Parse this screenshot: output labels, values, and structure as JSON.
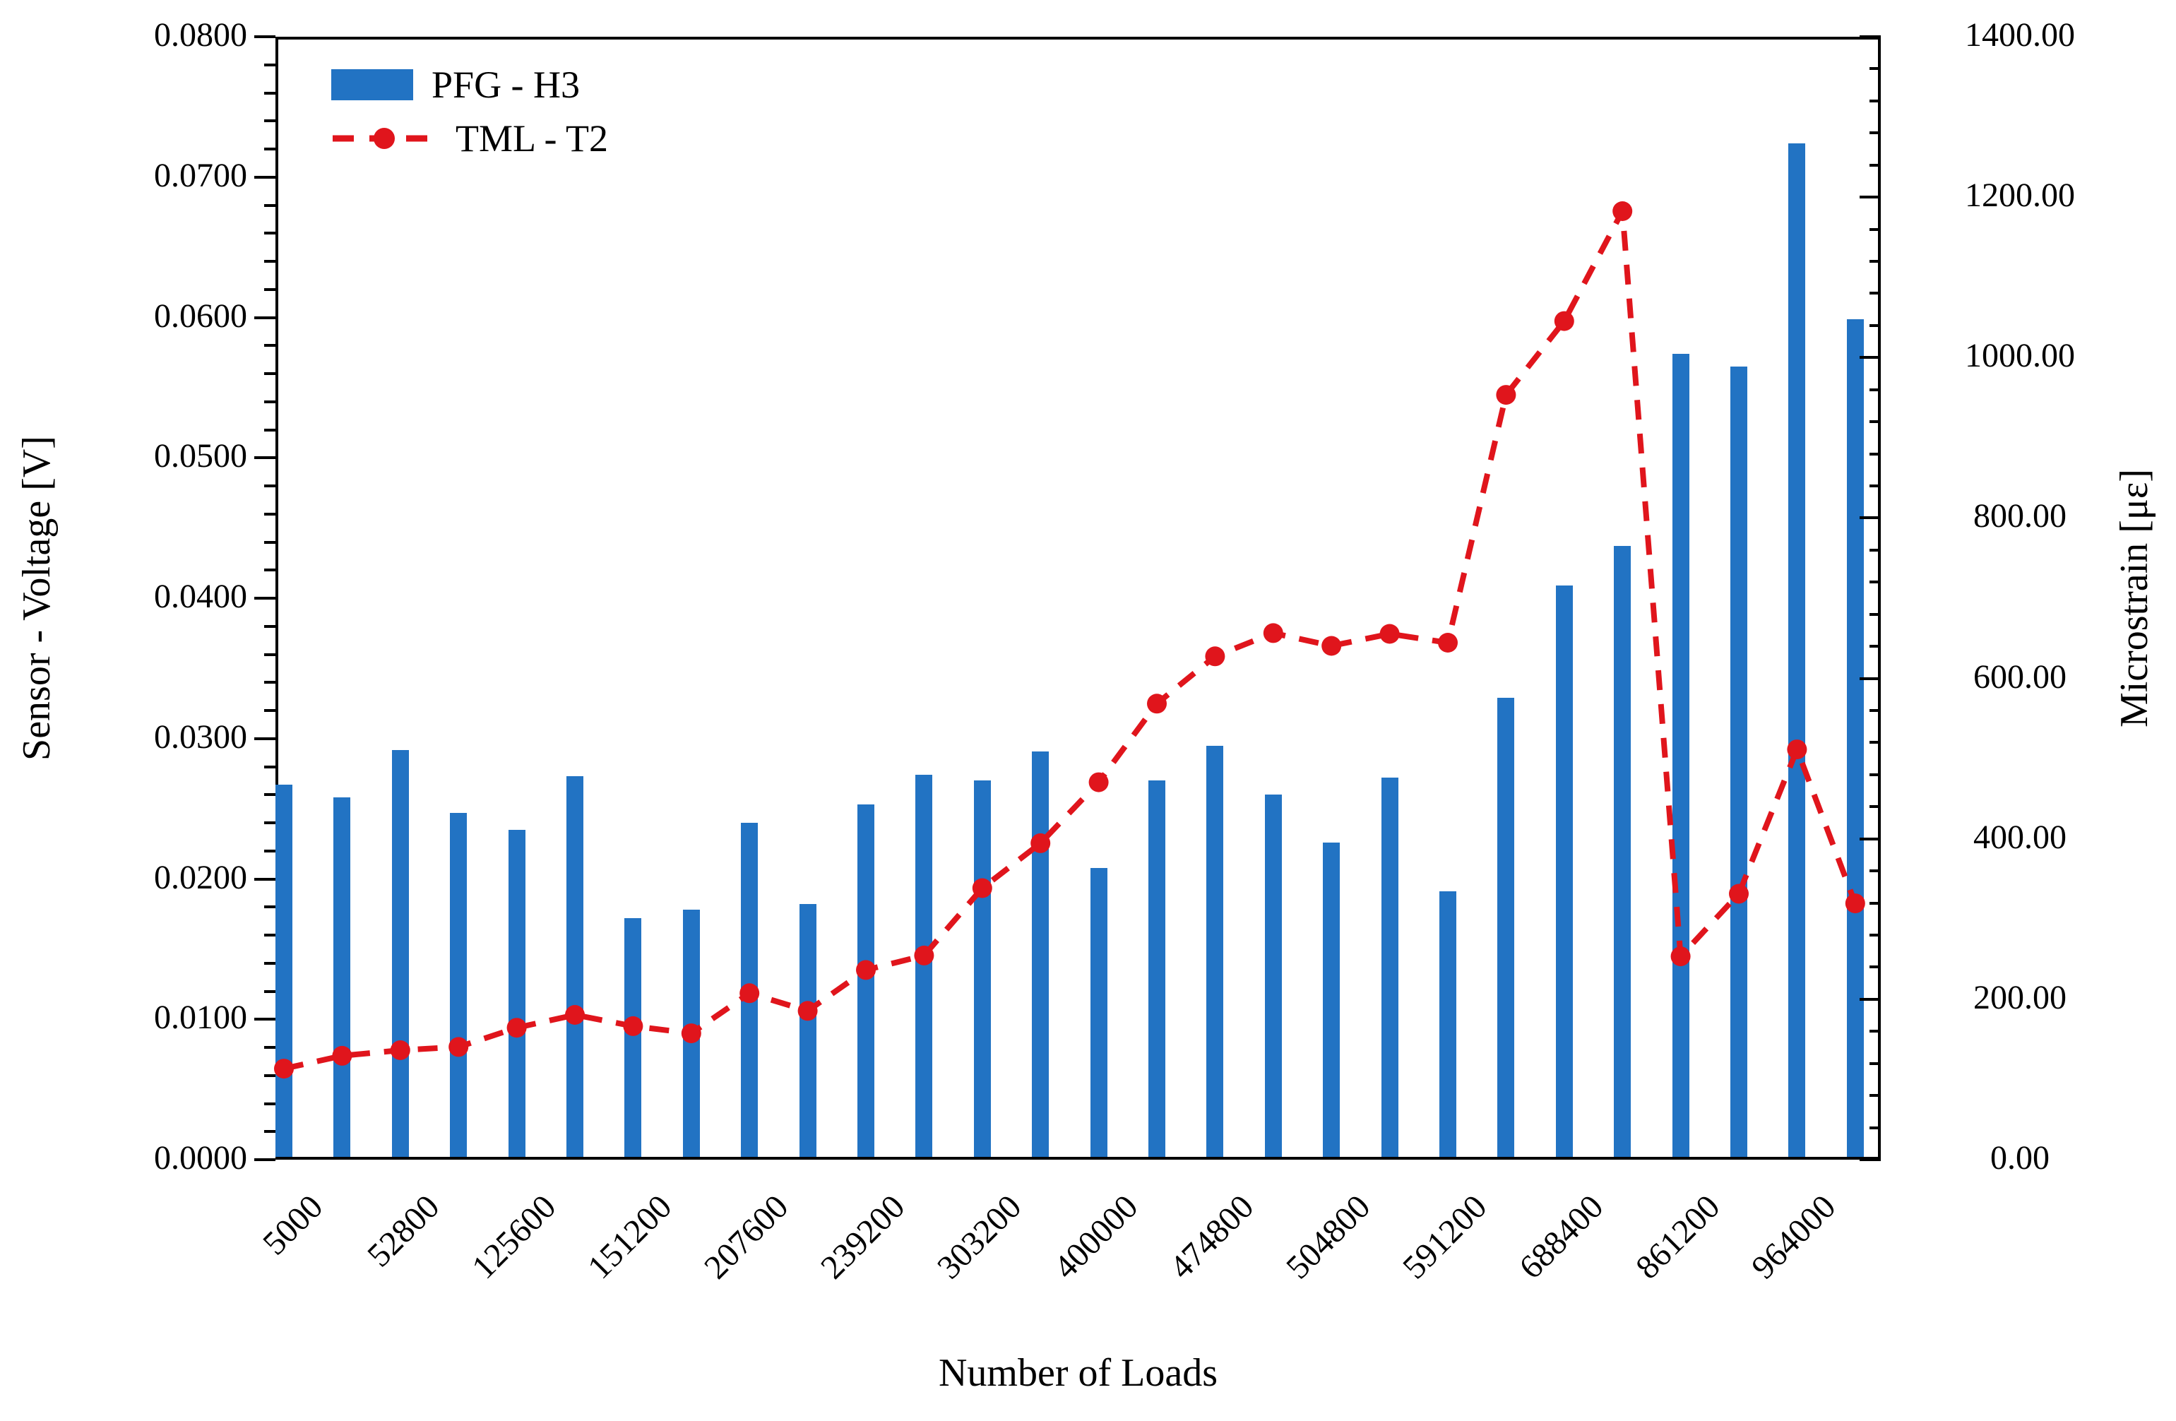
{
  "chart_data": {
    "type": "bar+line combo",
    "x_axis": {
      "label": "Number of Loads",
      "tick_labels_on_every_other_bar": true
    },
    "categories": [
      "5000",
      "",
      "52800",
      "",
      "125600",
      "",
      "151200",
      "",
      "207600",
      "",
      "239200",
      "",
      "303200",
      "",
      "400000",
      "",
      "474800",
      "",
      "504800",
      "",
      "591200",
      "",
      "688400",
      "",
      "861200",
      "",
      "964000",
      ""
    ],
    "series": [
      {
        "name": "PFG - H3",
        "type": "bar",
        "axis": "left",
        "color": "#2273c3",
        "values": [
          0.0265,
          0.0256,
          0.029,
          0.0245,
          0.0233,
          0.0271,
          0.017,
          0.0176,
          0.0238,
          0.018,
          0.0251,
          0.0272,
          0.0268,
          0.0289,
          0.0206,
          0.0268,
          0.0293,
          0.0258,
          0.0224,
          0.027,
          0.0189,
          0.0327,
          0.0407,
          0.0435,
          0.0572,
          0.0563,
          0.0722,
          0.0597
        ]
      },
      {
        "name": "TML - T2",
        "type": "line",
        "style": "dashed-with-dots",
        "axis": "right",
        "color": "#e0151c",
        "values": [
          110,
          126,
          133,
          137,
          161,
          177,
          163,
          154,
          204,
          182,
          233,
          251,
          335,
          391,
          467,
          565,
          624,
          653,
          637,
          652,
          641,
          950,
          1042,
          1179,
          250,
          328,
          508,
          316
        ]
      }
    ],
    "left_axis": {
      "label": "Sensor - Voltage [V]",
      "min": 0.0,
      "max": 0.08,
      "major_step": 0.01,
      "minor_step": 0.002,
      "tick_labels": [
        "0.0000",
        "0.0100",
        "0.0200",
        "0.0300",
        "0.0400",
        "0.0500",
        "0.0600",
        "0.0700",
        "0.0800"
      ]
    },
    "right_axis": {
      "label": "Microstrain [με]",
      "min": 0,
      "max": 1400,
      "major_step": 200,
      "minor_step": 40,
      "tick_labels": [
        "0.00",
        "200.00",
        "400.00",
        "600.00",
        "800.00",
        "1000.00",
        "1200.00",
        "1400.00"
      ]
    },
    "legend": {
      "position": "top-left-inside",
      "entries": [
        "PFG - H3",
        "TML - T2"
      ]
    },
    "grid": "off"
  }
}
